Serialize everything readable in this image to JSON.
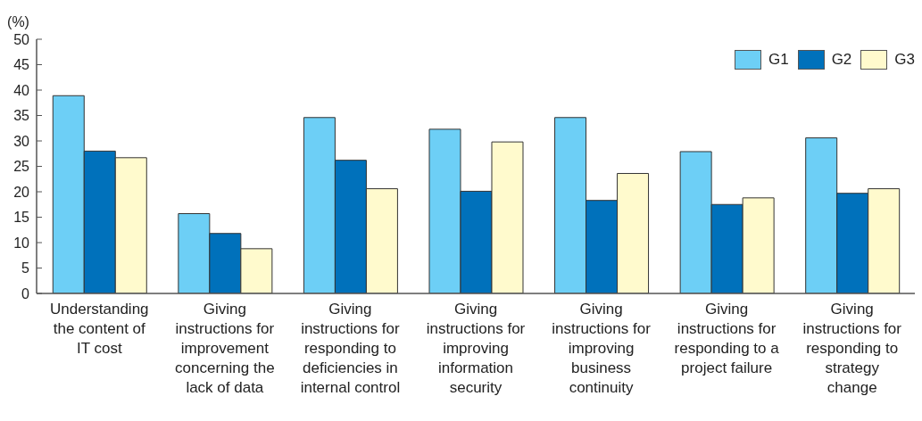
{
  "chart_data": {
    "type": "bar",
    "ylabel": "(%)",
    "categories": [
      "Understanding the content of IT cost",
      "Giving instructions for improvement concerning the lack of data",
      "Giving instructions for responding to deficiencies in internal control",
      "Giving instructions for improving information security",
      "Giving instructions for improving business continuity",
      "Giving instructions for responding to a project failure",
      "Giving instructions for responding to strategy change"
    ],
    "series": [
      {
        "name": "G1",
        "color": "#6dcff6",
        "values": [
          38.9,
          15.7,
          34.6,
          32.3,
          34.6,
          27.9,
          30.6
        ]
      },
      {
        "name": "G2",
        "color": "#0071bb",
        "values": [
          28.0,
          11.8,
          26.2,
          20.1,
          18.3,
          17.5,
          19.7
        ]
      },
      {
        "name": "G3",
        "color": "#fffacd",
        "values": [
          26.7,
          8.8,
          20.6,
          29.8,
          23.6,
          18.8,
          20.6
        ]
      }
    ],
    "ylim": [
      0,
      50
    ],
    "yticks": [
      0,
      5,
      10,
      15,
      20,
      25,
      30,
      35,
      40,
      45,
      50
    ],
    "legend": "top right"
  }
}
